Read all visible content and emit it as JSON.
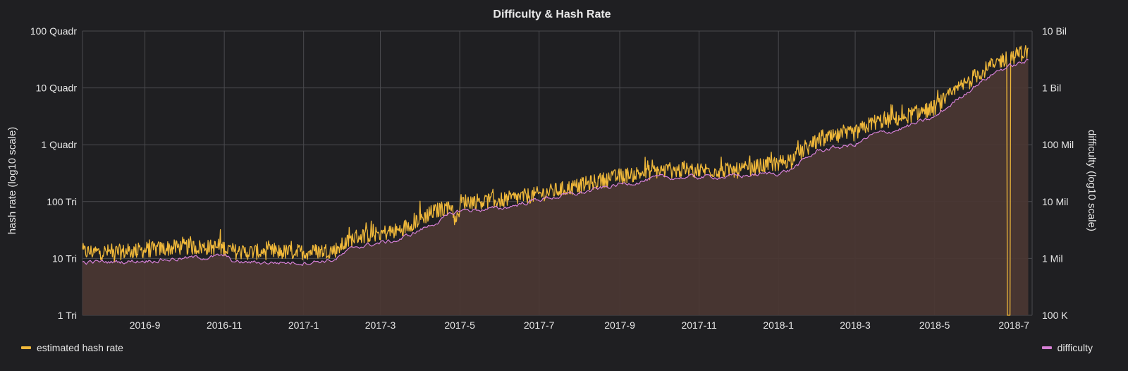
{
  "chart_data": {
    "type": "line",
    "title": "Difficulty & Hash Rate",
    "ylabel_left": "hash rate (log10 scale)",
    "ylabel_right": "difficulty (log10 scale)",
    "y_left_scale": "log10",
    "y_right_scale": "log10",
    "ylim_left": [
      1000000000000.0,
      1e+17
    ],
    "ylim_right": [
      100000.0,
      10000000000.0
    ],
    "y_left_ticks": [
      {
        "value": 1000000000000.0,
        "label": "1 Tri"
      },
      {
        "value": 10000000000000.0,
        "label": "10 Tri"
      },
      {
        "value": 100000000000000.0,
        "label": "100 Tri"
      },
      {
        "value": 1000000000000000.0,
        "label": "1 Quadr"
      },
      {
        "value": 1e+16,
        "label": "10 Quadr"
      },
      {
        "value": 1e+17,
        "label": "100 Quadr"
      }
    ],
    "y_right_ticks": [
      {
        "value": 100000.0,
        "label": "100 K"
      },
      {
        "value": 1000000.0,
        "label": "1 Mil"
      },
      {
        "value": 10000000.0,
        "label": "10 Mil"
      },
      {
        "value": 100000000.0,
        "label": "100 Mil"
      },
      {
        "value": 1000000000.0,
        "label": "1 Bil"
      },
      {
        "value": 10000000000.0,
        "label": "10 Bil"
      }
    ],
    "xlim": [
      "2016-07-15",
      "2018-07-15"
    ],
    "x_ticks": [
      {
        "value": "2016-09-01",
        "label": "2016-9"
      },
      {
        "value": "2016-11-01",
        "label": "2016-11"
      },
      {
        "value": "2017-01-01",
        "label": "2017-1"
      },
      {
        "value": "2017-03-01",
        "label": "2017-3"
      },
      {
        "value": "2017-05-01",
        "label": "2017-5"
      },
      {
        "value": "2017-07-01",
        "label": "2017-7"
      },
      {
        "value": "2017-09-01",
        "label": "2017-9"
      },
      {
        "value": "2017-11-01",
        "label": "2017-11"
      },
      {
        "value": "2018-01-01",
        "label": "2018-1"
      },
      {
        "value": "2018-03-01",
        "label": "2018-3"
      },
      {
        "value": "2018-05-01",
        "label": "2018-5"
      },
      {
        "value": "2018-07-01",
        "label": "2018-7"
      }
    ],
    "grid": true,
    "series": [
      {
        "name": "estimated hash rate",
        "axis": "left",
        "color": "#f0b83a",
        "noisy": true,
        "points": [
          {
            "x": "2016-07-15",
            "y": 13000000000000.0
          },
          {
            "x": "2016-08-15",
            "y": 13000000000000.0
          },
          {
            "x": "2016-10-01",
            "y": 16000000000000.0
          },
          {
            "x": "2016-11-01",
            "y": 15500000000000.0
          },
          {
            "x": "2016-11-10",
            "y": 13000000000000.0
          },
          {
            "x": "2017-01-01",
            "y": 13000000000000.0
          },
          {
            "x": "2017-01-25",
            "y": 14000000000000.0
          },
          {
            "x": "2017-02-10",
            "y": 24000000000000.0
          },
          {
            "x": "2017-03-15",
            "y": 31000000000000.0
          },
          {
            "x": "2017-04-10",
            "y": 65000000000000.0
          },
          {
            "x": "2017-04-25",
            "y": 85000000000000.0
          },
          {
            "x": "2017-04-28",
            "y": 40000000000000.0
          },
          {
            "x": "2017-05-02",
            "y": 100000000000000.0
          },
          {
            "x": "2017-06-01",
            "y": 105000000000000.0
          },
          {
            "x": "2017-07-01",
            "y": 135000000000000.0
          },
          {
            "x": "2017-08-01",
            "y": 190000000000000.0
          },
          {
            "x": "2017-09-01",
            "y": 280000000000000.0
          },
          {
            "x": "2017-10-01",
            "y": 350000000000000.0
          },
          {
            "x": "2017-11-01",
            "y": 360000000000000.0
          },
          {
            "x": "2017-12-01",
            "y": 350000000000000.0
          },
          {
            "x": "2018-01-01",
            "y": 480000000000000.0
          },
          {
            "x": "2018-01-10",
            "y": 550000000000000.0
          },
          {
            "x": "2018-02-01",
            "y": 1200000000000000.0
          },
          {
            "x": "2018-03-01",
            "y": 1600000000000000.0
          },
          {
            "x": "2018-03-15",
            "y": 2500000000000000.0
          },
          {
            "x": "2018-04-01",
            "y": 2800000000000000.0
          },
          {
            "x": "2018-05-01",
            "y": 4500000000000000.0
          },
          {
            "x": "2018-06-01",
            "y": 1.6e+16
          },
          {
            "x": "2018-06-20",
            "y": 3e+16
          },
          {
            "x": "2018-07-12",
            "y": 4.4e+16
          }
        ],
        "drop": {
          "x_from": "2018-06-26",
          "x_to": "2018-06-28",
          "y": 1000000000000.0
        }
      },
      {
        "name": "difficulty",
        "axis": "right",
        "color": "#d680d6",
        "noisy": false,
        "points": [
          {
            "x": "2016-07-15",
            "y": 850000.0
          },
          {
            "x": "2016-08-15",
            "y": 880000.0
          },
          {
            "x": "2016-10-01",
            "y": 1000000.0
          },
          {
            "x": "2016-11-01",
            "y": 1100000.0
          },
          {
            "x": "2016-11-10",
            "y": 850000.0
          },
          {
            "x": "2017-01-01",
            "y": 850000.0
          },
          {
            "x": "2017-01-25",
            "y": 950000.0
          },
          {
            "x": "2017-02-10",
            "y": 1600000.0
          },
          {
            "x": "2017-03-15",
            "y": 2100000.0
          },
          {
            "x": "2017-04-10",
            "y": 4000000.0
          },
          {
            "x": "2017-05-01",
            "y": 7000000.0
          },
          {
            "x": "2017-06-01",
            "y": 7500000.0
          },
          {
            "x": "2017-07-01",
            "y": 11000000.0
          },
          {
            "x": "2017-08-01",
            "y": 14000000.0
          },
          {
            "x": "2017-09-01",
            "y": 20000000.0
          },
          {
            "x": "2017-10-01",
            "y": 26000000.0
          },
          {
            "x": "2017-11-01",
            "y": 27000000.0
          },
          {
            "x": "2017-12-01",
            "y": 28000000.0
          },
          {
            "x": "2018-01-01",
            "y": 32000000.0
          },
          {
            "x": "2018-01-10",
            "y": 36000000.0
          },
          {
            "x": "2018-02-01",
            "y": 80000000.0
          },
          {
            "x": "2018-03-01",
            "y": 100000000.0
          },
          {
            "x": "2018-03-15",
            "y": 150000000.0
          },
          {
            "x": "2018-04-01",
            "y": 180000000.0
          },
          {
            "x": "2018-05-01",
            "y": 300000000.0
          },
          {
            "x": "2018-06-01",
            "y": 1100000000.0
          },
          {
            "x": "2018-06-20",
            "y": 2100000000.0
          },
          {
            "x": "2018-07-12",
            "y": 3000000000.0
          }
        ]
      }
    ],
    "legend": [
      {
        "name": "estimated hash rate",
        "color": "#f0b83a",
        "placement": "bottom-left"
      },
      {
        "name": "difficulty",
        "color": "#d680d6",
        "placement": "bottom-right"
      }
    ],
    "area_fill_color": "#4a3733"
  }
}
